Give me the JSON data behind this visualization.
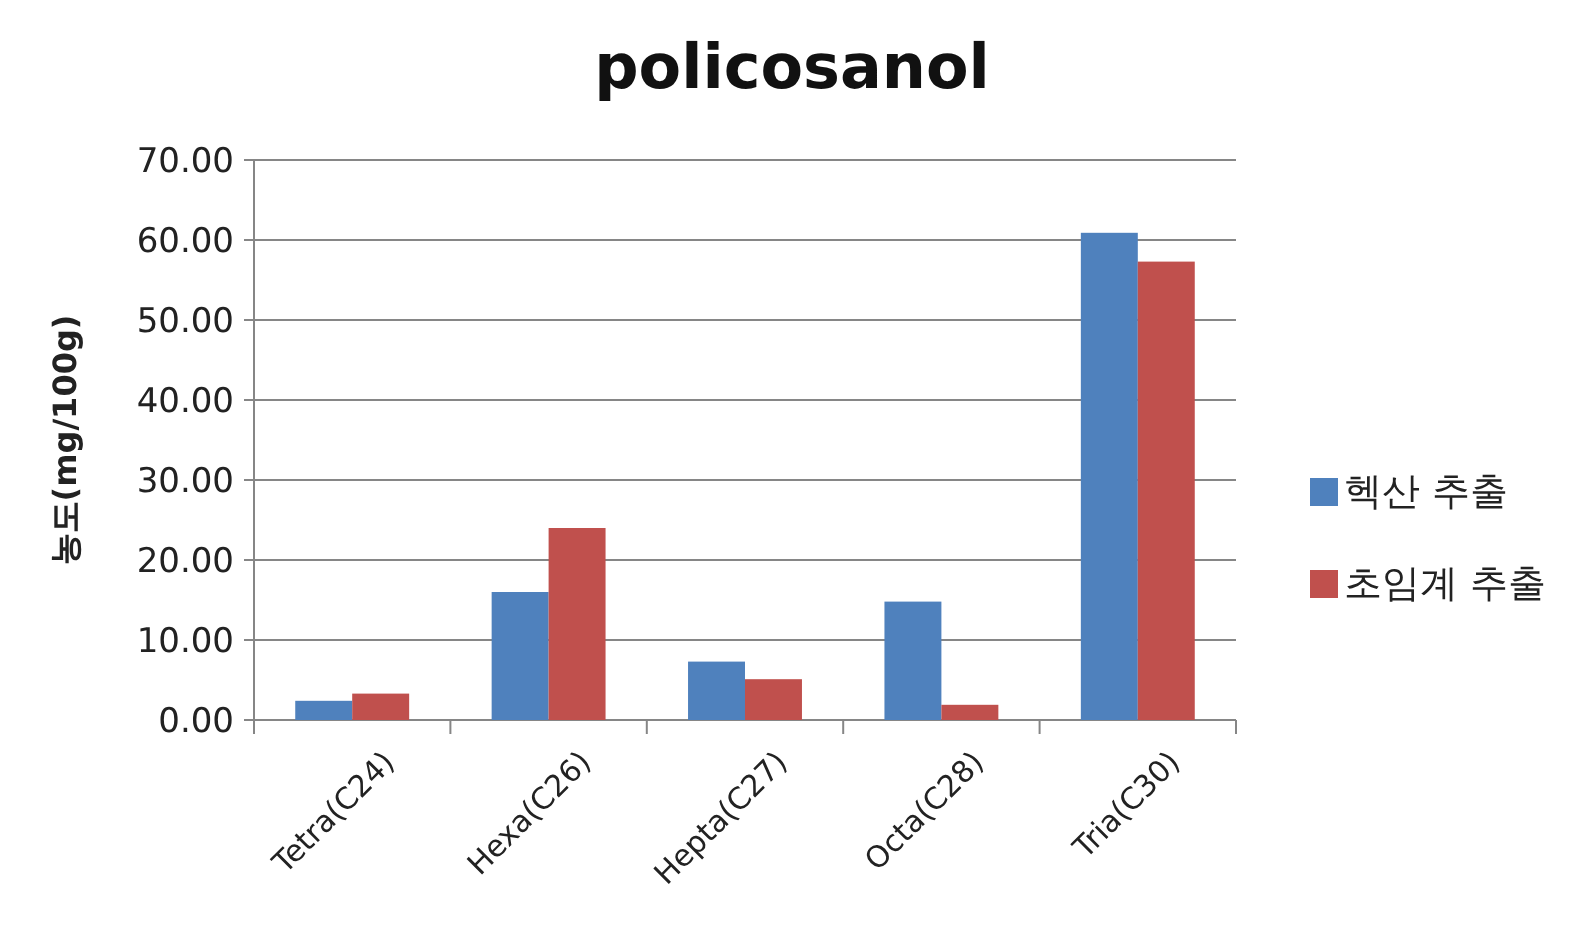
{
  "chart_data": {
    "type": "bar",
    "title": "policosanol",
    "ylabel": "농도(mg/100g)",
    "categories": [
      "Tetra(C24)",
      "Hexa(C26)",
      "Hepta(C27)",
      "Octa(C28)",
      "Tria(C30)"
    ],
    "series": [
      {
        "name": "헥산 추출",
        "color": "#4f81bd",
        "values": [
          2.4,
          16.0,
          7.3,
          14.8,
          60.9
        ]
      },
      {
        "name": "초임계 추출",
        "color": "#c0504d",
        "values": [
          3.3,
          24.0,
          5.1,
          1.9,
          57.3
        ]
      }
    ],
    "ylim": [
      0,
      70
    ],
    "yticks": [
      {
        "value": 0,
        "label": "0.00"
      },
      {
        "value": 10,
        "label": "10.00"
      },
      {
        "value": 20,
        "label": "20.00"
      },
      {
        "value": 30,
        "label": "30.00"
      },
      {
        "value": 40,
        "label": "40.00"
      },
      {
        "value": 50,
        "label": "50.00"
      },
      {
        "value": 60,
        "label": "60.00"
      },
      {
        "value": 70,
        "label": "70.00"
      }
    ],
    "grid": "y",
    "legend": "right"
  }
}
